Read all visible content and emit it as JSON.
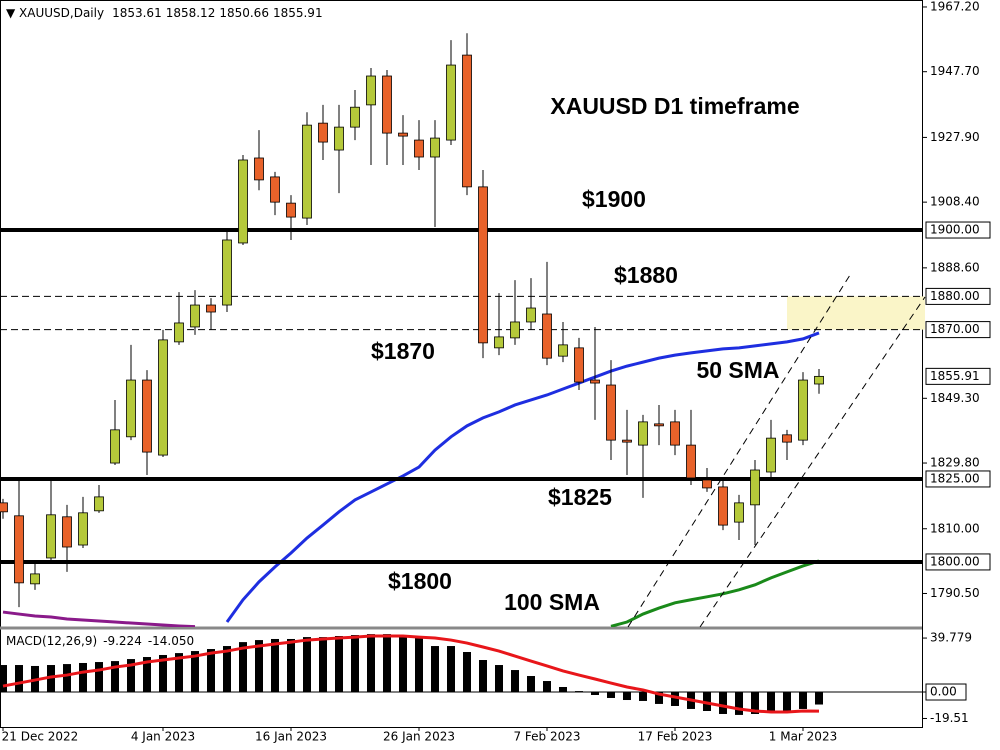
{
  "chart_data": [
    {
      "type": "candlestick",
      "title": "XAUUSD,Daily",
      "categories": [
        "21 Dec 2022",
        null,
        null,
        null,
        null,
        null,
        null,
        null,
        null,
        null,
        "4 Jan 2023",
        null,
        null,
        null,
        null,
        null,
        null,
        null,
        "16 Jan 2023",
        null,
        null,
        null,
        null,
        null,
        null,
        null,
        "26 Jan 2023",
        null,
        null,
        null,
        null,
        null,
        null,
        null,
        "7 Feb 2023",
        null,
        null,
        null,
        null,
        null,
        null,
        null,
        "17 Feb 2023",
        null,
        null,
        null,
        null,
        null,
        null,
        null,
        "1 Mar 2023",
        null
      ],
      "open": [
        1817.8,
        1813.9,
        1793.4,
        1801.2,
        1813.6,
        1805.1,
        1815.4,
        1829.8,
        1837.7,
        1854.8,
        1832.2,
        1866.3,
        1870.8,
        1877.4,
        1877.4,
        1896.1,
        1921.7,
        1916.0,
        1908.1,
        1903.6,
        1932.2,
        1924.1,
        1931.0,
        1937.7,
        1946.4,
        1929.2,
        1927.1,
        1922.0,
        1927.1,
        1952.7,
        1913.0,
        1864.5,
        1867.5,
        1872.3,
        1874.7,
        1862.0,
        1864.5,
        1854.8,
        1853.3,
        1836.7,
        1835.2,
        1841.6,
        1842.2,
        1835.2,
        1824.7,
        1822.6,
        1812.0,
        1817.2,
        1827.1,
        1838.3,
        1836.7,
        1853.61
      ],
      "high": [
        1819.0,
        1824.7,
        1800.6,
        1825.6,
        1817.2,
        1819.6,
        1823.2,
        1848.8,
        1865.4,
        1857.8,
        1869.9,
        1881.3,
        1881.9,
        1879.5,
        1899.4,
        1922.6,
        1930.1,
        1917.5,
        1910.5,
        1935.5,
        1937.7,
        1937.7,
        1942.2,
        1948.8,
        1948.2,
        1934.6,
        1933.1,
        1933.1,
        1957.2,
        1959.3,
        1918.1,
        1881.0,
        1884.9,
        1885.5,
        1890.4,
        1872.3,
        1867.5,
        1870.8,
        1860.8,
        1845.8,
        1844.3,
        1847.3,
        1845.8,
        1845.8,
        1828.3,
        1824.7,
        1820.2,
        1830.7,
        1842.8,
        1839.8,
        1857.2,
        1858.12
      ],
      "low": [
        1813.0,
        1786.4,
        1791.6,
        1800.6,
        1797.0,
        1804.2,
        1814.8,
        1829.2,
        1836.7,
        1826.2,
        1831.6,
        1865.4,
        1868.4,
        1869.9,
        1875.3,
        1895.5,
        1912.0,
        1904.5,
        1897.0,
        1901.5,
        1921.1,
        1911.1,
        1927.1,
        1919.6,
        1919.6,
        1919.6,
        1918.1,
        1900.9,
        1925.6,
        1910.5,
        1861.4,
        1862.3,
        1865.4,
        1869.9,
        1859.3,
        1860.2,
        1851.8,
        1842.8,
        1830.7,
        1826.2,
        1819.3,
        1835.2,
        1832.2,
        1823.2,
        1821.1,
        1809.6,
        1806.6,
        1805.1,
        1824.7,
        1830.7,
        1835.2,
        1850.66
      ],
      "close": [
        1815.1,
        1793.7,
        1796.4,
        1814.2,
        1804.5,
        1814.8,
        1819.6,
        1839.8,
        1854.8,
        1833.1,
        1866.9,
        1872.0,
        1877.4,
        1875.3,
        1897.0,
        1921.1,
        1915.1,
        1908.4,
        1903.9,
        1931.6,
        1926.5,
        1931.0,
        1937.0,
        1946.4,
        1929.2,
        1928.3,
        1922.0,
        1927.7,
        1949.7,
        1913.0,
        1866.0,
        1867.8,
        1872.3,
        1876.5,
        1861.4,
        1865.4,
        1854.2,
        1853.9,
        1836.7,
        1836.1,
        1842.2,
        1841.0,
        1835.2,
        1825.3,
        1822.3,
        1811.1,
        1817.8,
        1827.7,
        1837.3,
        1836.1,
        1854.8,
        1855.91
      ],
      "up_color": "#b5c93a",
      "down_color": "#e8622a",
      "ylim": [
        1780.4,
        1969.3
      ],
      "yticks": [
        {
          "value": 1967.2,
          "label": "1967.20"
        },
        {
          "value": 1947.7,
          "label": "1947.70"
        },
        {
          "value": 1927.9,
          "label": "1927.90"
        },
        {
          "value": 1908.4,
          "label": "1908.40"
        },
        {
          "value": 1888.6,
          "label": "1888.60"
        },
        {
          "value": 1849.3,
          "label": "1849.30"
        },
        {
          "value": 1829.8,
          "label": "1829.80"
        },
        {
          "value": 1810,
          "label": "1810.00"
        },
        {
          "value": 1790.5,
          "label": "1790.50"
        }
      ],
      "lines": [
        {
          "name": "50 SMA",
          "color": "#1e2ee0",
          "values": [
            null,
            null,
            null,
            null,
            null,
            null,
            null,
            null,
            null,
            null,
            null,
            null,
            null,
            null,
            1781.9,
            1788.6,
            1794.0,
            1798.5,
            1802.7,
            1807.2,
            1811.1,
            1815.1,
            1818.7,
            1821.1,
            1823.5,
            1825.9,
            1828.6,
            1833.7,
            1837.7,
            1841.0,
            1843.4,
            1845.2,
            1847.3,
            1848.8,
            1850.3,
            1852.1,
            1853.9,
            1855.7,
            1857.5,
            1859.0,
            1860.2,
            1861.4,
            1862.3,
            1863.0,
            1863.6,
            1864.2,
            1864.5,
            1865.1,
            1865.7,
            1866.3,
            1867.2,
            1869.0
          ]
        },
        {
          "name": "100 SMA",
          "color": "#1a8a1a",
          "values": [
            null,
            null,
            null,
            null,
            null,
            null,
            null,
            null,
            null,
            null,
            null,
            null,
            null,
            null,
            null,
            null,
            null,
            null,
            null,
            null,
            null,
            null,
            null,
            null,
            null,
            null,
            null,
            null,
            null,
            null,
            null,
            null,
            null,
            null,
            null,
            null,
            null,
            null,
            1780.6,
            1781.9,
            1784.3,
            1786.1,
            1787.7,
            1788.6,
            1789.5,
            1790.4,
            1791.6,
            1793.1,
            1795.2,
            1797.0,
            1798.8,
            1800.3
          ]
        },
        {
          "color": "#8a1a8a",
          "values": [
            1784.9,
            1784.3,
            1783.7,
            1783.4,
            1782.8,
            1782.5,
            1782.2,
            1781.9,
            1781.6,
            1781.3,
            1781.0,
            1780.7,
            1780.5,
            null,
            null,
            null,
            null,
            null,
            null,
            null,
            null,
            null,
            null,
            null,
            null,
            null,
            null,
            null,
            null,
            null,
            null,
            null,
            null,
            null,
            null,
            null,
            null,
            null,
            null,
            null,
            null,
            null,
            null,
            null,
            null,
            null,
            null,
            null,
            null,
            null,
            null,
            null
          ]
        }
      ],
      "levels": [
        {
          "value": 1900,
          "label": "1900.00",
          "style": "solid",
          "note": "$1900"
        },
        {
          "value": 1880,
          "label": "1880.00",
          "style": "dashed",
          "note": "$1880"
        },
        {
          "value": 1870,
          "label": "1870.00",
          "style": "dashed",
          "note": "$1870"
        },
        {
          "value": 1825,
          "label": "1825.00",
          "style": "solid",
          "note": "$1825"
        },
        {
          "value": 1800,
          "label": "1800.00",
          "style": "solid",
          "note": "$1800"
        }
      ],
      "zone": {
        "from": 1870,
        "to": 1880,
        "color": "#faf5c8"
      },
      "annotation": "XAUUSD D1 timeframe"
    },
    {
      "type": "macd",
      "title": "MACD(12,26,9)",
      "histogram": [
        19.9,
        19.9,
        19.2,
        19.9,
        20.6,
        21.4,
        22.1,
        22.8,
        24.3,
        25.8,
        27.3,
        28.7,
        30.2,
        31.7,
        33.9,
        36.8,
        38.3,
        39.1,
        39.1,
        40.5,
        40.5,
        41.3,
        42.0,
        42.7,
        42.7,
        41.3,
        39.8,
        33.9,
        33.9,
        29.5,
        23.6,
        19.9,
        16.2,
        11.8,
        8.1,
        3.7,
        0.7,
        -2.2,
        -4.4,
        -5.9,
        -6.6,
        -8.8,
        -10.3,
        -12.5,
        -14.0,
        -16.2,
        -16.9,
        -16.2,
        -14.7,
        -14.0,
        -12.5,
        -9.224
      ],
      "signal": [
        4.4,
        6.6,
        8.8,
        11.1,
        12.5,
        14.7,
        16.2,
        18.4,
        19.9,
        22.1,
        23.6,
        25.1,
        26.5,
        28.7,
        30.2,
        32.4,
        33.9,
        35.4,
        36.8,
        38.3,
        39.1,
        39.8,
        40.5,
        41.3,
        41.3,
        41.3,
        40.5,
        39.8,
        38.3,
        36.1,
        33.2,
        30.2,
        26.5,
        22.8,
        19.2,
        15.5,
        12.5,
        9.6,
        6.6,
        3.7,
        1.5,
        -1.5,
        -3.7,
        -5.9,
        -8.1,
        -10.3,
        -12.5,
        -14.0,
        -14.7,
        -14.7,
        -14.0,
        -14.05
      ],
      "signal_last_label": "-14.050",
      "hist_color": "#000000",
      "signal_color": "#e8161a",
      "ylim": [
        -25.8,
        47.2
      ],
      "yticks": [
        39.779,
        {
          "value": 0,
          "label": "0.00"
        },
        -19.51
      ]
    }
  ]
}
